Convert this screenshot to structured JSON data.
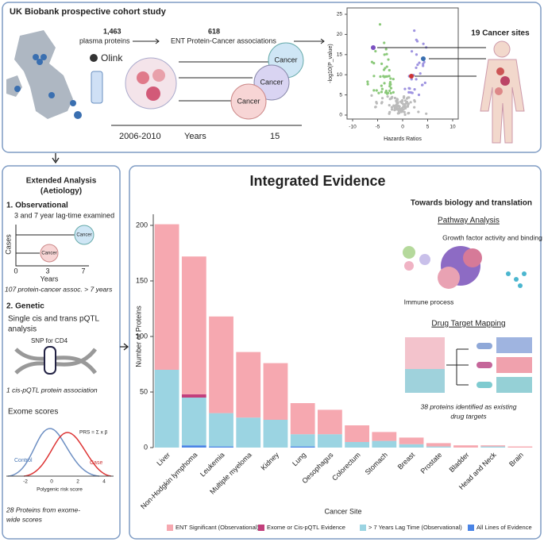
{
  "top": {
    "title": "UK Biobank prospective cohort study",
    "n_proteins": "1,463",
    "proteins_label": "plasma proteins",
    "olink": "Olink",
    "n_assoc": "618",
    "assoc_label": "ENT Protein-Cancer associations",
    "cancer": "Cancer",
    "recruit": "2006-2010",
    "years": "Years",
    "years_end": "15",
    "sites": "19 Cancer sites",
    "volcano": {
      "ylabel": "-log10(P_value)",
      "xlabel": "Hazards Ratios",
      "xticks": [
        -10,
        -5,
        0,
        5,
        10
      ],
      "yticks": [
        0,
        5,
        10,
        15,
        20,
        25
      ]
    }
  },
  "left": {
    "title1": "Extended Analysis",
    "title2": "(Aetiology)",
    "obs": "1.  Observational",
    "obs_sub": "3 and 7 year lag-time examined",
    "cases": "Cases",
    "years": "Years",
    "t0": "0",
    "t3": "3",
    "t7": "7",
    "cancer": "Cancer",
    "obs_result": "107 protein-cancer assoc. > 7 years",
    "gen": "2. Genetic",
    "gen_sub1": "Single cis and trans pQTL",
    "gen_sub2": "analysis",
    "snp": "SNP for CD4",
    "gen_result": "1 cis-pQTL protein association",
    "exome": "Exome scores",
    "control": "Control",
    "case": "Case",
    "prs_axis": "Polygenic risk score",
    "prs_ticks": [
      "-2",
      "0",
      "2",
      "4"
    ],
    "formula": "PRS = Σ x β",
    "exome_result1": "28 Proteins from exome-",
    "exome_result2": "wide scores"
  },
  "right": {
    "title": "Integrated Evidence",
    "subtitle": "Towards biology and translation",
    "pathway": "Pathway Analysis",
    "growth": "Growth factor activity and binding",
    "immune": "Immune process",
    "drug": "Drug Target Mapping",
    "drug_result1": "38 proteins identified as existing",
    "drug_result2": "drug targets"
  },
  "chart_data": {
    "type": "bar",
    "stacked": true,
    "xlabel": "Cancer Site",
    "ylabel": "Number of Proteins",
    "categories": [
      "Liver",
      "Non-Hodgkin lymphoma",
      "Leukemia",
      "Multiple myeloma",
      "Kidney",
      "Lung",
      "Oesophagus",
      "Colorectum",
      "Stomach",
      "Breast",
      "Prostate",
      "Bladder",
      "Head and Neck",
      "Brain"
    ],
    "series": [
      {
        "name": "ENT Significant (Observational)",
        "color": "#f6a8b0",
        "values": [
          131,
          124,
          87,
          59,
          51,
          28,
          22,
          15,
          8,
          6,
          3,
          2,
          1,
          1
        ]
      },
      {
        "name": "Exome or Cis-pQTL Evidence",
        "color": "#c23f7c",
        "values": [
          0,
          3,
          0,
          0,
          0,
          0,
          0,
          0,
          0,
          0,
          0,
          0,
          0,
          0
        ]
      },
      {
        "name": "> 7 Years Lag Time (Observational)",
        "color": "#9bd4e2",
        "values": [
          70,
          43,
          30,
          27,
          25,
          11,
          12,
          5,
          6,
          3,
          1,
          0,
          1,
          0
        ]
      },
      {
        "name": "All Lines of Evidence",
        "color": "#4a84e6",
        "values": [
          0,
          2,
          1,
          0,
          0,
          1,
          0,
          0,
          0,
          0,
          0,
          0,
          0,
          0
        ]
      }
    ],
    "ylim": [
      0,
      210
    ],
    "yticks": [
      0,
      50,
      100,
      150,
      200
    ],
    "legend": "bottom"
  }
}
